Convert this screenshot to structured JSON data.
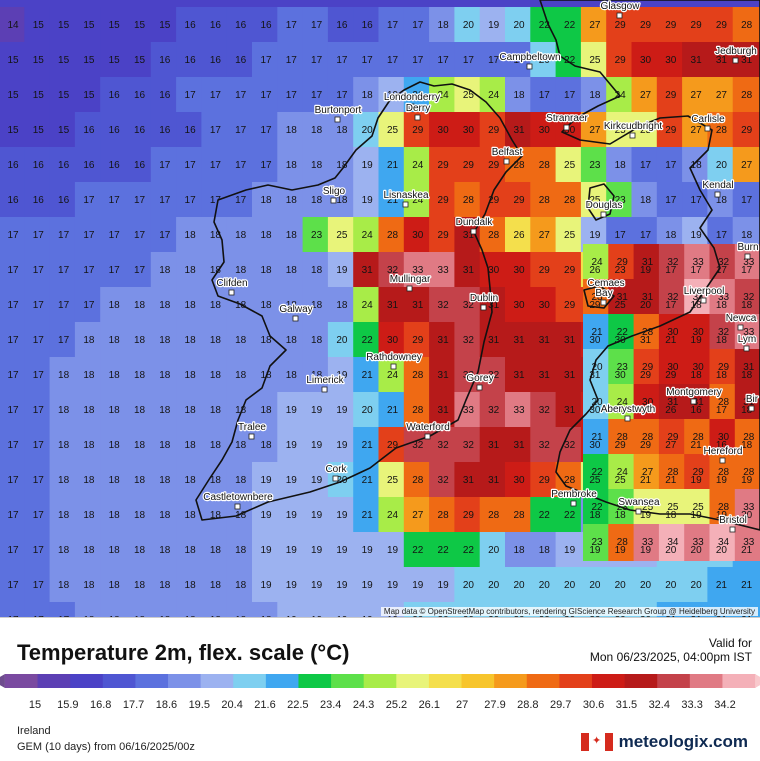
{
  "title": "Temperature 2m, flex. scale (°C)",
  "valid_label": "Valid for",
  "valid_time": "Mon 06/23/2025, 04:00pm IST",
  "region": "Ireland",
  "model_line": "GEM (10 days) from 06/16/2025/00z",
  "attribution": "Map data © OpenStreetMap contributors, rendering GIScience Research Group @ Heidelberg University",
  "brand": {
    "flag_icon": "canada-flag-icon",
    "text": "meteologix.com"
  },
  "legend": {
    "ticks": [
      "15",
      "15.9",
      "16.8",
      "17.7",
      "18.6",
      "19.5",
      "20.4",
      "21.6",
      "22.5",
      "23.4",
      "24.3",
      "25.2",
      "26.1",
      "27",
      "27.9",
      "28.8",
      "29.7",
      "30.6",
      "31.5",
      "32.4",
      "33.3",
      "34.2"
    ],
    "colors": [
      "#7a4aa0",
      "#5c3fb4",
      "#4b42c6",
      "#4f56d2",
      "#5c71de",
      "#7c91e8",
      "#9cb2f0",
      "#7ecff0",
      "#3fa7f0",
      "#0ec846",
      "#5de04a",
      "#a8ec48",
      "#e8f47a",
      "#f4df4c",
      "#f7c52c",
      "#f59a1c",
      "#ef6a14",
      "#e3401a",
      "#cd1c16",
      "#b61a1a",
      "#c4424a",
      "#e07a84",
      "#f4b0b8"
    ]
  },
  "cities": [
    {
      "name": "Glasgow"
    },
    {
      "name": "Jedburgh"
    },
    {
      "name": "Campbeltown"
    },
    {
      "name": "Londonderry"
    },
    {
      "name": "Derry"
    },
    {
      "name": "Burtonport"
    },
    {
      "name": "Stranraer"
    },
    {
      "name": "Kirkcudbright"
    },
    {
      "name": "Carlisle"
    },
    {
      "name": "Belfast"
    },
    {
      "name": "Kendal"
    },
    {
      "name": "Sligo"
    },
    {
      "name": "Lisnaskea"
    },
    {
      "name": "Douglas"
    },
    {
      "name": "Dundalk"
    },
    {
      "name": "Burn"
    },
    {
      "name": "Clifden"
    },
    {
      "name": "Mullingar"
    },
    {
      "name": "Cemaes"
    },
    {
      "name": "Bay"
    },
    {
      "name": "Liverpool"
    },
    {
      "name": "Galway"
    },
    {
      "name": "Dublin"
    },
    {
      "name": "Newca"
    },
    {
      "name": "Lym"
    },
    {
      "name": "Rathdowney"
    },
    {
      "name": "Limerick"
    },
    {
      "name": "Gorey"
    },
    {
      "name": "Montgomery"
    },
    {
      "name": "Aberystwyth"
    },
    {
      "name": "Bir"
    },
    {
      "name": "Tralee"
    },
    {
      "name": "Waterford"
    },
    {
      "name": "Hereford"
    },
    {
      "name": "Cork"
    },
    {
      "name": "Pembroke"
    },
    {
      "name": "Swansea"
    },
    {
      "name": "Castletownbere"
    },
    {
      "name": "Bristol"
    }
  ],
  "grid": [
    [
      14,
      15,
      15,
      15,
      15,
      15,
      15,
      16,
      16,
      16,
      16,
      17,
      17,
      16,
      16,
      17,
      17,
      18,
      20,
      19,
      20,
      22,
      22,
      27,
      29,
      29,
      29,
      29,
      29,
      28
    ],
    [
      15,
      15,
      15,
      15,
      15,
      15,
      16,
      16,
      16,
      16,
      17,
      17,
      17,
      17,
      17,
      17,
      17,
      17,
      17,
      17,
      17,
      20,
      22,
      25,
      29,
      30,
      30,
      31,
      31,
      31
    ],
    [
      15,
      15,
      15,
      15,
      16,
      16,
      16,
      17,
      17,
      17,
      17,
      17,
      17,
      17,
      18,
      19,
      21,
      24,
      25,
      24,
      18,
      17,
      17,
      18,
      24,
      27,
      29,
      27,
      27,
      28
    ],
    [
      15,
      15,
      15,
      16,
      16,
      16,
      16,
      16,
      17,
      17,
      17,
      18,
      18,
      18,
      20,
      25,
      29,
      30,
      30,
      29,
      31,
      30,
      30,
      27,
      25,
      25,
      29,
      27,
      28,
      29
    ],
    [
      16,
      16,
      16,
      16,
      16,
      16,
      17,
      17,
      17,
      17,
      17,
      18,
      18,
      18,
      19,
      21,
      24,
      29,
      29,
      29,
      28,
      28,
      25,
      23,
      18,
      17,
      17,
      18,
      20,
      27
    ],
    [
      16,
      16,
      16,
      17,
      17,
      17,
      17,
      17,
      17,
      17,
      18,
      18,
      18,
      18,
      19,
      21,
      24,
      29,
      28,
      29,
      29,
      28,
      28,
      25,
      23,
      18,
      17,
      17,
      18,
      17
    ],
    [
      17,
      17,
      17,
      17,
      17,
      17,
      17,
      18,
      18,
      18,
      18,
      18,
      23,
      25,
      24,
      28,
      30,
      29,
      31,
      28,
      26,
      27,
      25,
      19,
      17,
      17,
      18,
      19,
      17,
      18
    ],
    [
      17,
      17,
      17,
      17,
      17,
      17,
      18,
      18,
      18,
      18,
      18,
      18,
      18,
      19,
      31,
      32,
      33,
      33,
      31,
      30,
      30,
      29,
      29,
      26,
      23,
      19,
      17,
      17,
      17,
      17
    ],
    [
      17,
      17,
      17,
      17,
      18,
      18,
      18,
      18,
      18,
      18,
      18,
      18,
      18,
      18,
      24,
      31,
      31,
      32,
      32,
      31,
      30,
      30,
      29,
      29,
      25,
      20,
      17,
      18,
      18,
      18
    ],
    [
      17,
      17,
      17,
      18,
      18,
      18,
      18,
      18,
      18,
      18,
      18,
      18,
      18,
      20,
      22,
      30,
      29,
      31,
      32,
      31,
      31,
      31,
      31,
      30,
      30,
      31,
      21,
      19,
      18,
      18
    ],
    [
      17,
      17,
      18,
      18,
      18,
      18,
      18,
      18,
      18,
      18,
      18,
      18,
      18,
      19,
      21,
      24,
      28,
      31,
      32,
      32,
      31,
      31,
      31,
      31,
      30,
      29,
      29,
      18,
      18,
      18
    ],
    [
      17,
      17,
      18,
      18,
      18,
      18,
      18,
      18,
      18,
      18,
      18,
      19,
      19,
      19,
      20,
      21,
      28,
      31,
      33,
      32,
      33,
      32,
      31,
      30,
      30,
      31,
      26,
      16,
      17,
      18
    ],
    [
      17,
      17,
      18,
      18,
      18,
      18,
      18,
      18,
      18,
      18,
      18,
      19,
      19,
      19,
      21,
      29,
      32,
      32,
      32,
      31,
      31,
      32,
      32,
      30,
      29,
      29,
      27,
      21,
      16,
      18
    ],
    [
      17,
      17,
      18,
      18,
      18,
      18,
      18,
      18,
      18,
      18,
      19,
      19,
      19,
      20,
      21,
      25,
      28,
      32,
      31,
      31,
      30,
      29,
      28,
      25,
      25,
      21,
      21,
      19,
      19,
      19
    ],
    [
      17,
      17,
      18,
      18,
      18,
      18,
      18,
      18,
      18,
      18,
      19,
      19,
      19,
      19,
      21,
      24,
      27,
      28,
      29,
      28,
      28,
      22,
      22,
      18,
      18,
      19,
      18,
      19,
      19,
      20
    ],
    [
      17,
      17,
      18,
      18,
      18,
      18,
      18,
      18,
      18,
      18,
      19,
      19,
      19,
      19,
      19,
      19,
      22,
      22,
      22,
      20,
      18,
      18,
      19,
      19,
      19,
      19,
      20,
      20,
      20,
      21
    ],
    [
      17,
      17,
      18,
      18,
      18,
      18,
      18,
      18,
      18,
      18,
      19,
      19,
      19,
      19,
      19,
      19,
      19,
      19,
      20,
      20,
      20,
      20,
      20,
      20,
      20,
      20,
      20,
      20,
      21,
      21
    ],
    [
      17,
      17,
      17,
      18,
      18,
      18,
      18,
      18,
      18,
      18,
      18,
      19,
      19,
      19,
      19,
      19,
      20,
      20,
      20,
      20,
      20,
      20,
      20,
      20,
      20,
      20,
      21,
      21,
      21,
      21
    ]
  ],
  "east_cells": [
    [
      24,
      29,
      31,
      32,
      33,
      32,
      33
    ],
    [
      28,
      31,
      31,
      32,
      34,
      33,
      32
    ],
    [
      21,
      22,
      28,
      30,
      30,
      32,
      33
    ],
    [
      20,
      23,
      29,
      30,
      30,
      29,
      31
    ],
    [
      20,
      24,
      30,
      31,
      31,
      28,
      31
    ],
    [
      21,
      28,
      28,
      29,
      28,
      30,
      28
    ],
    [
      22,
      24,
      27,
      28,
      29,
      28,
      28
    ],
    [
      22,
      23,
      25,
      25,
      25,
      28,
      33
    ],
    [
      23,
      28,
      33,
      34,
      33,
      34,
      33
    ]
  ]
}
